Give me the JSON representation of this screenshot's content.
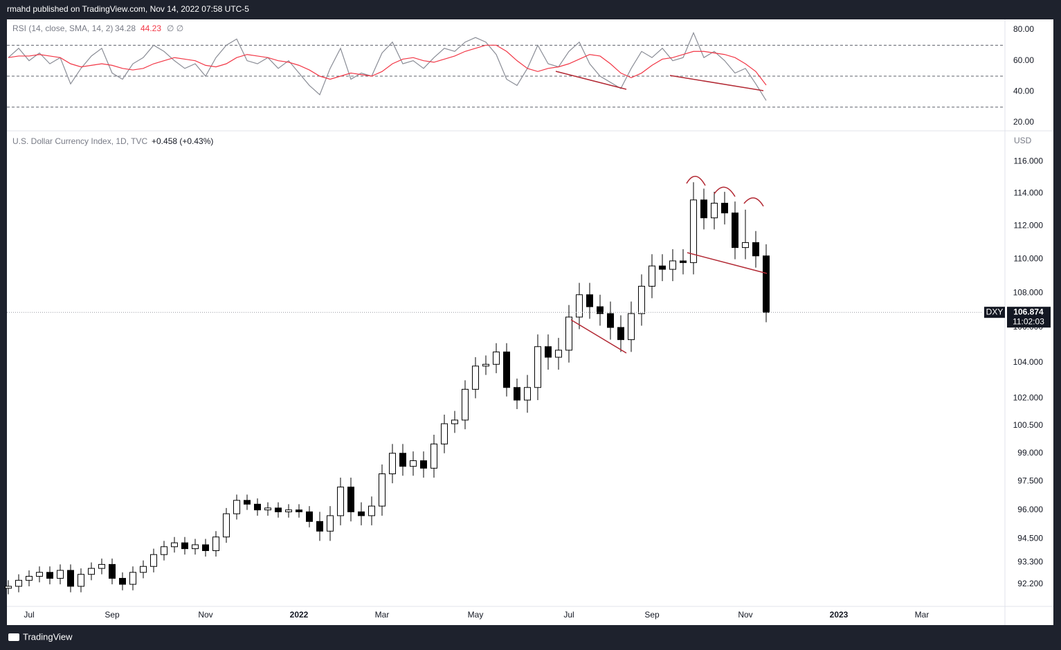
{
  "header": "rmahd published on TradingView.com, Nov 14, 2022 07:58 UTC-5",
  "footer": "TradingView",
  "chart_data": [
    {
      "type": "candlestick",
      "title": "U.S. Dollar Currency Index, 1D, TVC",
      "change": "+0.458 (+0.43%)",
      "unit": "USD",
      "symbol": "DXY",
      "countdown": "11:02:03",
      "log_scale": true,
      "grid": false,
      "up_color": "#ffffff",
      "down_color": "#000000",
      "categories": [
        null,
        null,
        "Jul",
        null,
        null,
        null,
        null,
        null,
        null,
        null,
        "Sep",
        null,
        null,
        null,
        null,
        null,
        null,
        null,
        null,
        "Nov",
        null,
        null,
        null,
        null,
        null,
        null,
        null,
        null,
        "2022",
        null,
        null,
        null,
        null,
        null,
        null,
        null,
        "Mar",
        null,
        null,
        null,
        null,
        null,
        null,
        null,
        null,
        "May",
        null,
        null,
        null,
        null,
        null,
        null,
        null,
        null,
        "Jul",
        null,
        null,
        null,
        null,
        null,
        null,
        null,
        "Sep",
        null,
        null,
        null,
        null,
        null,
        null,
        null,
        null,
        "Nov",
        null,
        null,
        null,
        null,
        null,
        null,
        null,
        null,
        "2023",
        null,
        null,
        null,
        null,
        null,
        null,
        null,
        "Mar"
      ],
      "open": [
        92.0,
        92.1,
        92.4,
        92.6,
        92.8,
        92.5,
        92.9,
        92.1,
        92.7,
        93.0,
        93.2,
        92.5,
        92.2,
        92.8,
        93.1,
        93.7,
        94.1,
        94.3,
        94.0,
        94.2,
        93.9,
        94.6,
        95.8,
        96.5,
        96.3,
        96.0,
        96.1,
        95.9,
        96.0,
        95.9,
        95.4,
        94.9,
        95.7,
        97.2,
        95.9,
        95.7,
        96.2,
        97.9,
        99.0,
        98.3,
        98.6,
        98.2,
        99.5,
        100.6,
        100.8,
        102.5,
        103.8,
        103.9,
        104.6,
        102.6,
        101.9,
        102.6,
        104.9,
        104.3,
        104.7,
        106.6,
        107.9,
        107.2,
        106.8,
        106.0,
        105.3,
        106.8,
        108.4,
        109.6,
        109.4,
        109.9,
        109.8,
        113.6,
        112.5,
        113.4,
        112.8,
        110.7,
        111.0,
        110.2,
        null,
        null,
        null,
        null,
        null,
        null,
        null,
        null,
        null,
        null,
        null,
        null,
        null,
        null,
        null
      ],
      "high": [
        92.4,
        92.7,
        92.9,
        93.1,
        93.1,
        93.2,
        93.2,
        93.0,
        93.3,
        93.5,
        93.5,
        92.8,
        93.1,
        93.4,
        94.0,
        94.4,
        94.6,
        94.6,
        94.5,
        94.5,
        94.9,
        96.1,
        96.8,
        96.8,
        96.6,
        96.4,
        96.4,
        96.3,
        96.3,
        96.2,
        95.9,
        96.2,
        97.7,
        97.7,
        96.4,
        96.7,
        98.4,
        99.5,
        99.5,
        99.1,
        99.1,
        100.0,
        101.1,
        101.3,
        103.0,
        104.3,
        104.4,
        105.1,
        105.1,
        103.1,
        103.3,
        105.6,
        105.6,
        105.4,
        107.3,
        108.6,
        108.6,
        107.9,
        107.5,
        106.7,
        107.5,
        109.1,
        110.3,
        110.3,
        110.6,
        110.6,
        114.7,
        114.3,
        114.1,
        114.1,
        113.5,
        113.0,
        111.7,
        110.9,
        null,
        null,
        null,
        null,
        null,
        null,
        null,
        null,
        null,
        null,
        null,
        null,
        null,
        null,
        null
      ],
      "low": [
        91.7,
        91.8,
        92.1,
        92.3,
        92.2,
        92.2,
        91.8,
        91.8,
        92.4,
        92.7,
        92.2,
        91.9,
        91.9,
        92.5,
        92.8,
        93.4,
        93.8,
        93.7,
        93.7,
        93.6,
        93.6,
        94.3,
        95.5,
        96.0,
        95.7,
        95.7,
        95.6,
        95.6,
        95.6,
        95.1,
        94.4,
        94.4,
        95.2,
        95.4,
        95.2,
        95.2,
        95.7,
        97.4,
        97.8,
        97.8,
        97.7,
        97.7,
        99.0,
        100.1,
        100.3,
        102.0,
        103.3,
        103.4,
        102.1,
        101.4,
        101.2,
        101.9,
        103.6,
        103.6,
        104.0,
        105.9,
        106.5,
        106.1,
        105.3,
        104.6,
        104.6,
        106.1,
        107.7,
        108.7,
        108.7,
        109.1,
        109.1,
        111.8,
        111.8,
        112.1,
        110.0,
        110.0,
        109.5,
        106.3,
        null,
        null,
        null,
        null,
        null,
        null,
        null,
        null,
        null,
        null,
        null,
        null,
        null,
        null,
        null
      ],
      "close": [
        92.1,
        92.4,
        92.6,
        92.8,
        92.5,
        92.9,
        92.1,
        92.7,
        93.0,
        93.2,
        92.5,
        92.2,
        92.8,
        93.1,
        93.7,
        94.1,
        94.3,
        94.0,
        94.2,
        93.9,
        94.6,
        95.8,
        96.5,
        96.3,
        96.0,
        96.1,
        95.9,
        96.0,
        95.9,
        95.4,
        94.9,
        95.7,
        97.2,
        95.9,
        95.7,
        96.2,
        97.9,
        99.0,
        98.3,
        98.6,
        98.2,
        99.5,
        100.6,
        100.8,
        102.5,
        103.8,
        103.9,
        104.6,
        102.6,
        101.9,
        102.6,
        104.9,
        104.3,
        104.7,
        106.6,
        107.9,
        107.2,
        106.8,
        106.0,
        105.3,
        106.8,
        108.4,
        109.6,
        109.4,
        109.9,
        109.8,
        113.6,
        112.5,
        113.4,
        112.8,
        110.7,
        111.0,
        110.2,
        106.874,
        null,
        null,
        null,
        null,
        null,
        null,
        null,
        null,
        null,
        null,
        null,
        null,
        null,
        null,
        null
      ],
      "ylim": [
        91.1,
        117.9
      ],
      "yticks": [
        {
          "value": 92.2,
          "label": "92.200"
        },
        {
          "value": 93.3,
          "label": "93.300"
        },
        {
          "value": 94.5,
          "label": "94.500"
        },
        {
          "value": 96,
          "label": "96.000"
        },
        {
          "value": 97.5,
          "label": "97.500"
        },
        {
          "value": 99,
          "label": "99.000"
        },
        {
          "value": 100.5,
          "label": "100.500"
        },
        {
          "value": 102,
          "label": "102.000"
        },
        {
          "value": 104,
          "label": "104.000"
        },
        {
          "value": 106,
          "label": "106.000"
        },
        {
          "value": 108,
          "label": "108.000"
        },
        {
          "value": 110,
          "label": "110.000"
        },
        {
          "value": 112,
          "label": "112.000"
        },
        {
          "value": 114,
          "label": "114.000"
        },
        {
          "value": 116,
          "label": "116.000"
        }
      ]
    },
    {
      "type": "line",
      "title": "RSI (14, close, SMA, 14, 2)",
      "flags": "∅ ∅",
      "grid": false,
      "levels": [
        70,
        50,
        30
      ],
      "series": [
        {
          "color": "#8a8d96",
          "values": [
            62,
            68,
            60,
            65,
            58,
            62,
            45,
            55,
            63,
            68,
            52,
            48,
            58,
            62,
            70,
            66,
            60,
            55,
            58,
            50,
            62,
            70,
            74,
            60,
            58,
            62,
            55,
            60,
            52,
            44,
            38,
            55,
            68,
            48,
            52,
            50,
            65,
            72,
            58,
            60,
            55,
            62,
            68,
            66,
            72,
            75,
            72,
            64,
            48,
            44,
            55,
            70,
            58,
            56,
            66,
            72,
            58,
            50,
            46,
            42,
            55,
            66,
            62,
            68,
            60,
            62,
            78,
            62,
            66,
            60,
            52,
            55,
            45,
            34.28,
            null,
            null,
            null,
            null,
            null,
            null,
            null,
            null,
            null,
            null,
            null,
            null,
            null,
            null,
            null
          ]
        },
        {
          "color": "#f23645",
          "values": [
            62,
            63,
            63,
            64,
            63,
            62,
            58,
            56,
            57,
            58,
            57,
            55,
            54,
            55,
            58,
            60,
            62,
            61,
            60,
            57,
            56,
            58,
            62,
            64,
            63,
            62,
            60,
            59,
            57,
            54,
            50,
            48,
            50,
            52,
            51,
            50,
            53,
            58,
            61,
            62,
            60,
            59,
            61,
            63,
            66,
            68,
            70,
            70,
            66,
            60,
            55,
            53,
            55,
            56,
            58,
            61,
            64,
            63,
            58,
            52,
            49,
            52,
            57,
            61,
            62,
            64,
            66,
            66,
            65,
            64,
            62,
            58,
            53,
            44.23,
            null,
            null,
            null,
            null,
            null,
            null,
            null,
            null,
            null,
            null,
            null,
            null,
            null,
            null,
            null
          ]
        }
      ],
      "ylim": [
        15.1,
        86.7
      ],
      "yticks": [
        {
          "value": 20,
          "label": "20.00"
        },
        {
          "value": 40,
          "label": "40.00"
        },
        {
          "value": 60,
          "label": "60.00"
        },
        {
          "value": 80,
          "label": "80.00"
        }
      ]
    }
  ]
}
